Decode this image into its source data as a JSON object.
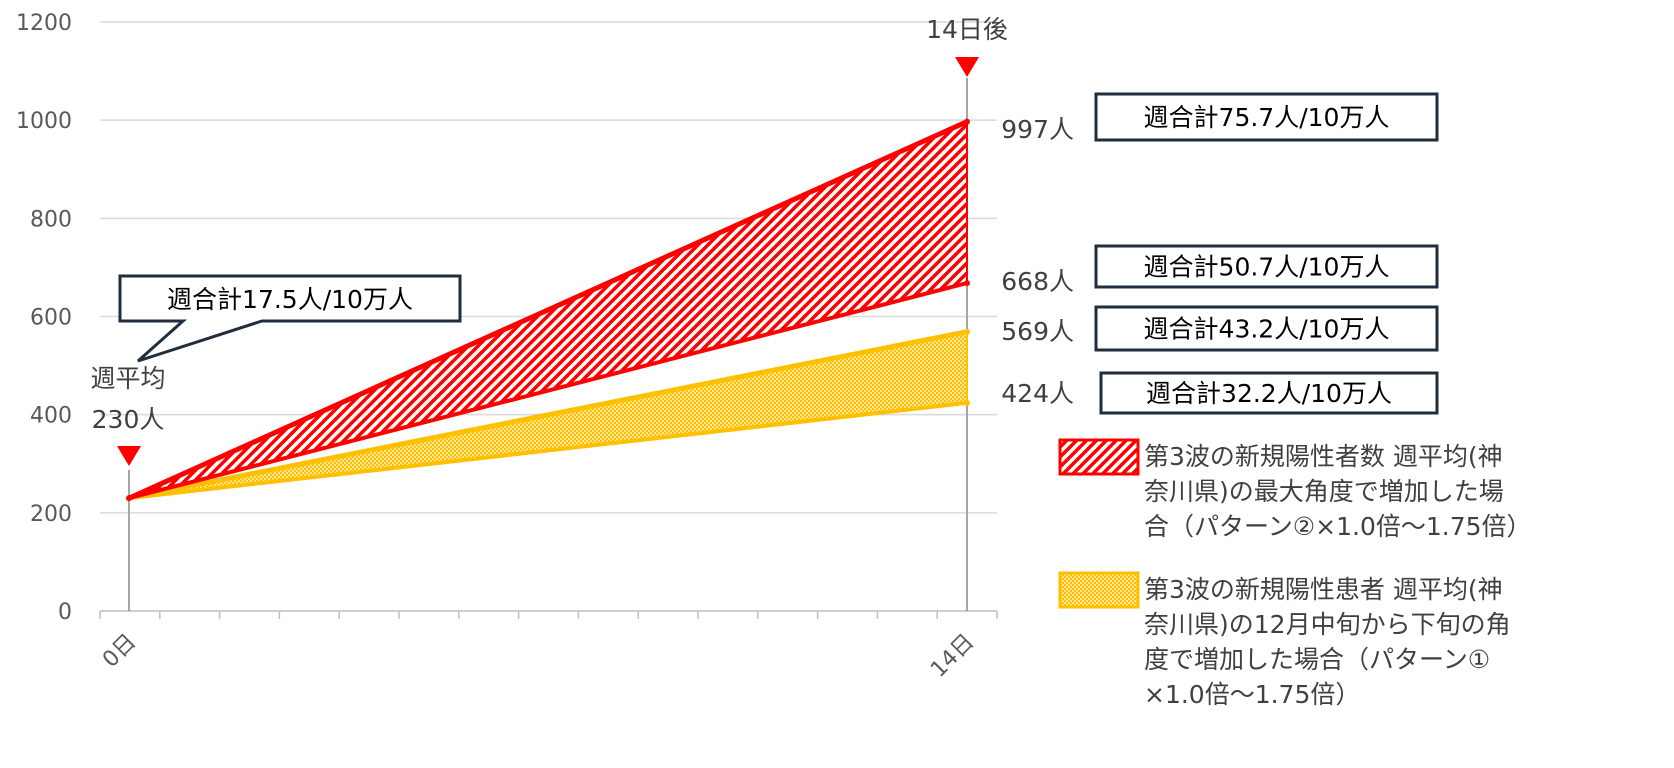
{
  "chart_data": {
    "type": "area",
    "categories": [
      "0日",
      "14日"
    ],
    "ylim": [
      0,
      1200
    ],
    "yticks": [
      "0",
      "200",
      "400",
      "600",
      "800",
      "1000",
      "1200"
    ],
    "grid": true,
    "legend_placement": "bottom-right",
    "markers": {
      "start_top": "週平均",
      "start_bottom": "230人",
      "end": "14日後"
    },
    "series": [
      {
        "name": "第3波の新規陽性者数 週平均(神奈川県)の最大角度で増加した場合（パターン②×1.0倍〜1.75倍）",
        "legend_lines": [
          "第3波の新規陽性者数 週平均(神",
          "奈川県)の最大角度で増加した場",
          "合（パターン②×1.0倍〜1.75倍）"
        ],
        "color": "#FF0000",
        "lower": [
          230,
          668
        ],
        "upper": [
          230,
          997
        ],
        "lower_label": "668人",
        "upper_label": "997人",
        "lower_box": "週合計50.7人/10万人",
        "upper_box": "週合計75.7人/10万人"
      },
      {
        "name": "第3波の新規陽性患者 週平均(神奈川県)の12月中旬から下旬の角度で増加した場合（パターン①×1.0倍〜1.75倍）",
        "legend_lines": [
          "第3波の新規陽性患者 週平均(神",
          "奈川県)の12月中旬から下旬の角",
          "度で増加した場合（パターン①",
          "×1.0倍〜1.75倍）"
        ],
        "color": "#FFC000",
        "lower": [
          230,
          424
        ],
        "upper": [
          230,
          569
        ],
        "lower_label": "424人",
        "upper_label": "569人",
        "lower_box": "週合計32.2人/10万人",
        "upper_box": "週合計43.2人/10万人"
      }
    ],
    "callout": "週合計17.5人/10万人"
  }
}
